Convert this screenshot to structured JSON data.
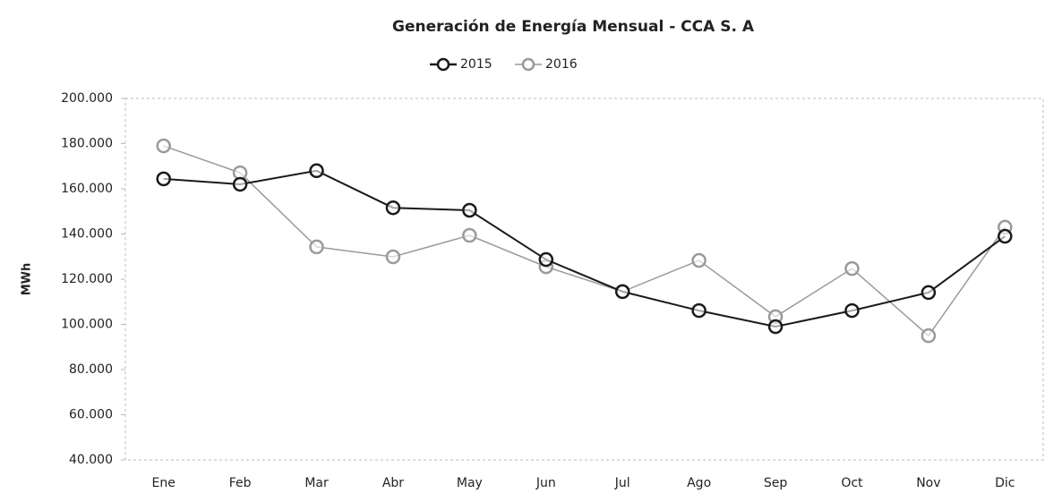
{
  "chart_data": {
    "type": "line",
    "title": "Generación de Energía Mensual - CCA S. A",
    "y_label": "MWh",
    "categories": [
      "Ene",
      "Feb",
      "Mar",
      "Abr",
      "May",
      "Jun",
      "Jul",
      "Ago",
      "Sep",
      "Oct",
      "Nov",
      "Dic"
    ],
    "series": [
      {
        "name": "2015",
        "color": "#1a1a1a",
        "values": [
          164400,
          162000,
          168000,
          151600,
          150500,
          128700,
          114500,
          106100,
          99000,
          106100,
          114100,
          139000
        ]
      },
      {
        "name": "2016",
        "color": "#9a9a9a",
        "values": [
          179000,
          167100,
          134300,
          129900,
          139400,
          125500,
          114500,
          128300,
          103400,
          124700,
          95000,
          143000
        ]
      }
    ],
    "ylim": [
      40000,
      200000
    ],
    "yticks": [
      {
        "value": 40000,
        "label": "40.000"
      },
      {
        "value": 60000,
        "label": "60.000"
      },
      {
        "value": 80000,
        "label": "80.000"
      },
      {
        "value": 100000,
        "label": "100.000"
      },
      {
        "value": 120000,
        "label": "120.000"
      },
      {
        "value": 140000,
        "label": "140.000"
      },
      {
        "value": 160000,
        "label": "160.000"
      },
      {
        "value": 180000,
        "label": "180.000"
      },
      {
        "value": 200000,
        "label": "200.000"
      }
    ],
    "grid": false,
    "legend": "top"
  }
}
